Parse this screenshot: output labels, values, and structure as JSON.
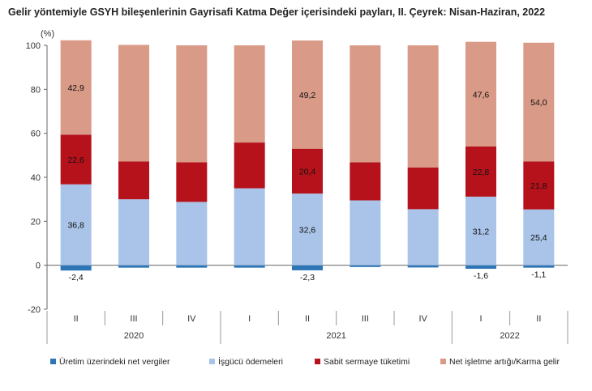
{
  "chart_data": {
    "type": "bar",
    "stacked": true,
    "title": "Gelir yöntemiyle GSYH bileşenlerinin Gayrisafi Katma Değer içerisindeki payları, II. Çeyrek: Nisan-Haziran, 2022",
    "ylabel": "(%)",
    "xlabel": "",
    "ylim": [
      -20,
      100
    ],
    "yticks": [
      -20,
      0,
      20,
      40,
      60,
      80,
      100
    ],
    "grid": false,
    "legend_position": "bottom",
    "categories": [
      "II",
      "III",
      "IV",
      "I",
      "II",
      "III",
      "IV",
      "I",
      "II"
    ],
    "groups": [
      {
        "label": "2020",
        "start": 0,
        "end": 2
      },
      {
        "label": "2021",
        "start": 3,
        "end": 6
      },
      {
        "label": "2022",
        "start": 7,
        "end": 8
      }
    ],
    "series": [
      {
        "name": "Üretim üzerindeki net vergiler",
        "color": "#2e75b6",
        "values": [
          -2.4,
          -1.1,
          -1.1,
          -1.1,
          -2.3,
          -0.8,
          -1.0,
          -1.6,
          -1.1
        ],
        "labels": [
          "-2,4",
          "",
          "",
          "",
          "-2,3",
          "",
          "",
          "-1,6",
          "-1,1"
        ]
      },
      {
        "name": "İşgücü ödemeleri",
        "color": "#a9c4e8",
        "values": [
          36.8,
          30.0,
          28.8,
          35.0,
          32.6,
          29.5,
          25.5,
          31.2,
          25.4
        ],
        "labels": [
          "36,8",
          "",
          "",
          "",
          "32,6",
          "",
          "",
          "31,2",
          "25,4"
        ]
      },
      {
        "name": "Sabit sermaye tüketimi",
        "color": "#b5121b",
        "values": [
          22.6,
          17.2,
          18.0,
          20.8,
          20.4,
          17.3,
          19.0,
          22.8,
          21.8
        ],
        "labels": [
          "22,6",
          "",
          "",
          "",
          "20,4",
          "",
          "",
          "22,8",
          "21,8"
        ]
      },
      {
        "name": "Net işletme artığı/Karma gelir",
        "color": "#d99a87",
        "values": [
          42.9,
          53.0,
          53.2,
          44.2,
          49.2,
          53.2,
          55.5,
          47.6,
          54.0
        ],
        "labels": [
          "42,9",
          "",
          "",
          "",
          "49,2",
          "",
          "",
          "47,6",
          "54,0"
        ]
      }
    ]
  }
}
